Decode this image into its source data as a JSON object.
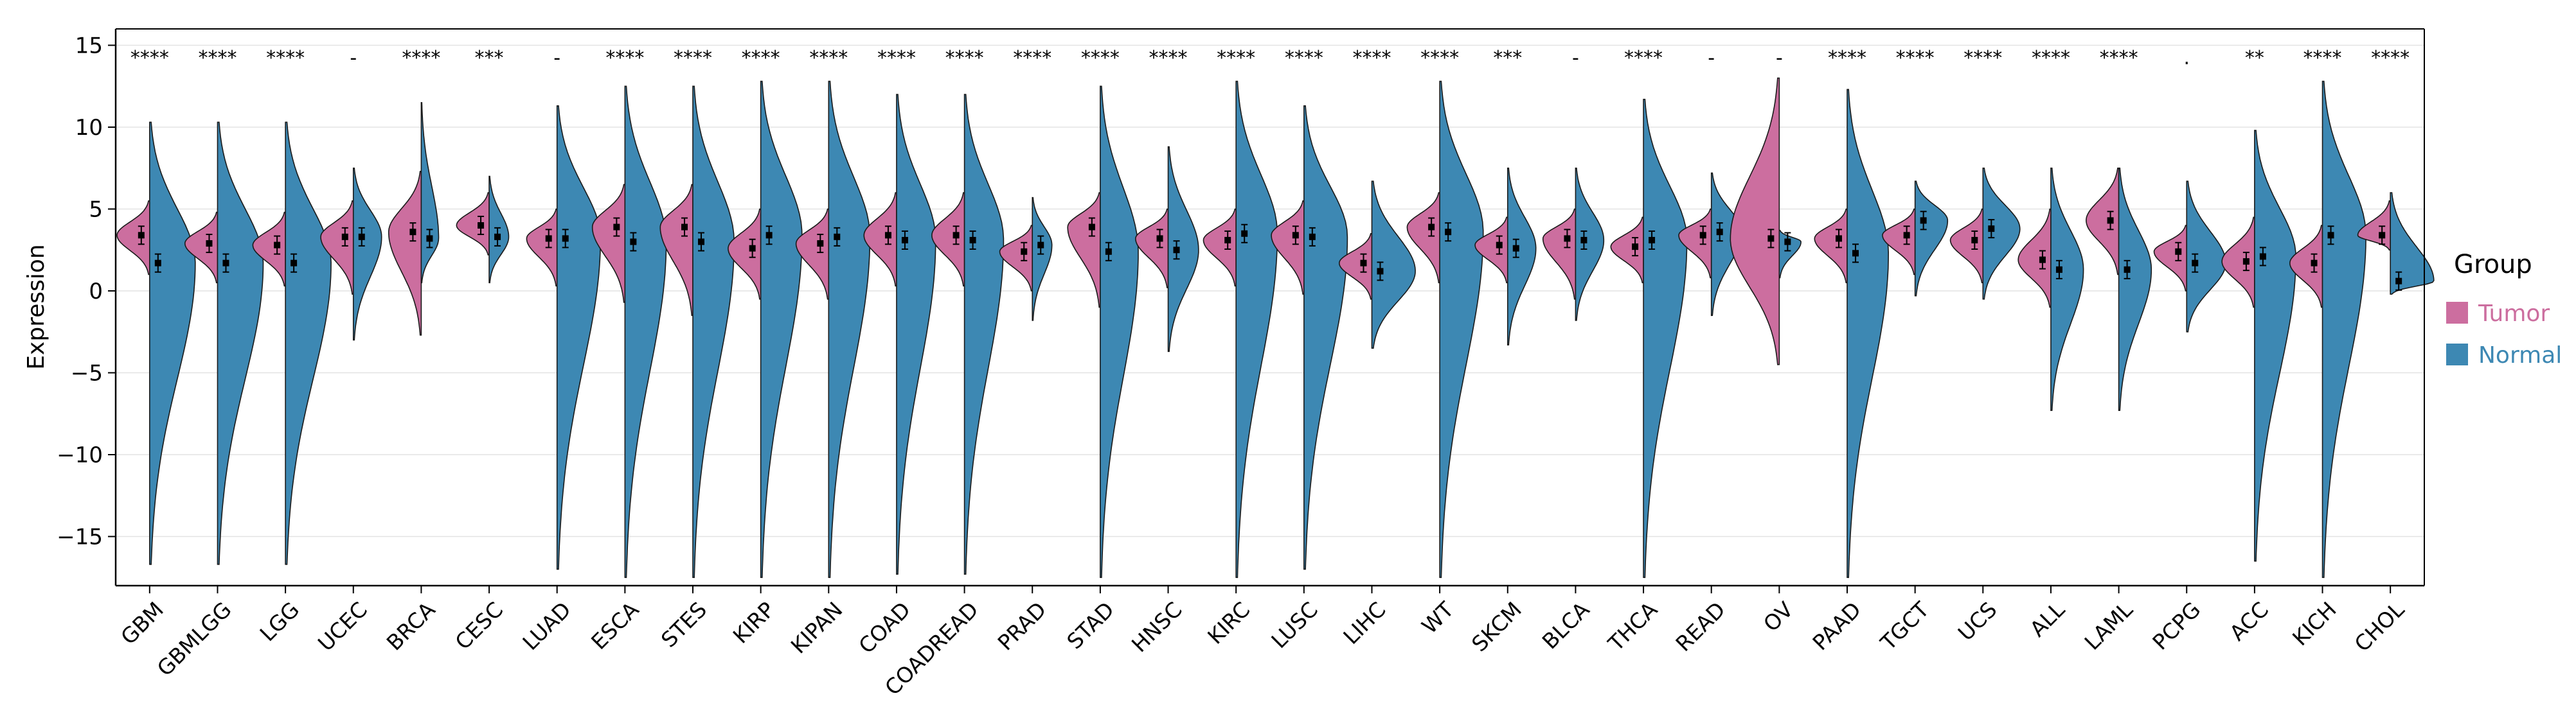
{
  "chart_data": {
    "type": "split-violin",
    "ylabel": "Expression",
    "xlabel": "",
    "ylim": [
      -18,
      16
    ],
    "yticks": [
      -15,
      -10,
      -5,
      0,
      5,
      10,
      15
    ],
    "ytick_labels": [
      "−15",
      "−10",
      "−5",
      "0",
      "5",
      "10",
      "15"
    ],
    "grid": true,
    "legend": {
      "title": "Group",
      "position": "right",
      "entries": [
        {
          "label": "Tumor",
          "color": "#cc6e9f"
        },
        {
          "label": "Normal",
          "color": "#3d88b3"
        }
      ]
    },
    "categories": [
      "GBM",
      "GBMLGG",
      "LGG",
      "UCEC",
      "BRCA",
      "CESC",
      "LUAD",
      "ESCA",
      "STES",
      "KIRP",
      "KIPAN",
      "COAD",
      "COADREAD",
      "PRAD",
      "STAD",
      "HNSC",
      "KIRC",
      "LUSC",
      "LIHC",
      "WT",
      "SKCM",
      "BLCA",
      "THCA",
      "READ",
      "OV",
      "PAAD",
      "TGCT",
      "UCS",
      "ALL",
      "LAML",
      "PCPG",
      "ACC",
      "KICH",
      "CHOL"
    ],
    "significance": [
      "****",
      "****",
      "****",
      "-",
      "****",
      "***",
      "-",
      "****",
      "****",
      "****",
      "****",
      "****",
      "****",
      "****",
      "****",
      "****",
      "****",
      "****",
      "****",
      "****",
      "***",
      "-",
      "****",
      "-",
      "-",
      "****",
      "****",
      "****",
      "****",
      "****",
      ".",
      "**",
      "****",
      "****"
    ],
    "series": [
      {
        "name": "Tumor",
        "color": "#cc6e9f",
        "side": "left",
        "mean": [
          3.4,
          2.9,
          2.8,
          3.3,
          3.6,
          4.0,
          3.2,
          3.9,
          3.9,
          2.6,
          2.9,
          3.4,
          3.4,
          2.4,
          3.9,
          3.2,
          3.1,
          3.4,
          1.7,
          3.9,
          2.8,
          3.2,
          2.7,
          3.4,
          3.2,
          3.2,
          3.4,
          3.1,
          1.9,
          4.3,
          2.4,
          1.8,
          1.7,
          3.4
        ],
        "min": [
          1.0,
          0.5,
          0.3,
          -0.2,
          -2.7,
          2.2,
          0.3,
          -0.7,
          -1.5,
          -0.5,
          -0.5,
          0.3,
          0.3,
          0.0,
          -1.0,
          0.2,
          0.3,
          -0.2,
          -0.5,
          0.5,
          0.5,
          -0.5,
          0.5,
          0.8,
          -4.5,
          0.5,
          1.0,
          0.5,
          -1.0,
          1.0,
          0.0,
          -1.0,
          -1.0,
          2.5
        ],
        "max": [
          5.5,
          4.8,
          4.8,
          5.5,
          7.3,
          6.0,
          5.0,
          6.5,
          6.5,
          5.0,
          5.0,
          6.0,
          6.0,
          4.0,
          6.0,
          5.0,
          5.0,
          5.5,
          3.5,
          6.0,
          4.5,
          5.0,
          4.5,
          5.0,
          13.0,
          5.0,
          5.0,
          5.0,
          5.0,
          7.5,
          4.0,
          4.5,
          4.0,
          5.5
        ],
        "peak_width": [
          0.3,
          0.3,
          0.3,
          0.3,
          0.3,
          0.3,
          0.28,
          0.3,
          0.3,
          0.3,
          0.3,
          0.3,
          0.3,
          0.3,
          0.3,
          0.3,
          0.3,
          0.3,
          0.3,
          0.3,
          0.3,
          0.3,
          0.3,
          0.3,
          0.45,
          0.3,
          0.3,
          0.3,
          0.3,
          0.3,
          0.3,
          0.3,
          0.3,
          0.3
        ]
      },
      {
        "name": "Normal",
        "color": "#3d88b3",
        "side": "right",
        "mean": [
          1.7,
          1.7,
          1.7,
          3.3,
          3.2,
          3.3,
          3.2,
          3.0,
          3.0,
          3.4,
          3.3,
          3.1,
          3.1,
          2.8,
          2.4,
          2.5,
          3.5,
          3.3,
          1.2,
          3.6,
          2.6,
          3.1,
          3.1,
          3.6,
          3.0,
          2.3,
          4.3,
          3.8,
          1.3,
          1.3,
          1.7,
          2.1,
          3.4,
          0.6
        ],
        "min": [
          -16.7,
          -16.7,
          -16.7,
          -3.0,
          0.5,
          0.5,
          -17.0,
          -17.5,
          -17.5,
          -17.5,
          -17.5,
          -17.3,
          -17.3,
          -1.8,
          -17.5,
          -3.7,
          -17.5,
          -17.0,
          -3.5,
          -17.5,
          -3.3,
          -1.8,
          -17.5,
          -1.5,
          0.8,
          -17.5,
          -0.3,
          -0.5,
          -7.3,
          -7.3,
          -2.5,
          -16.5,
          -17.5,
          -0.2
        ],
        "max": [
          10.3,
          10.3,
          10.3,
          7.5,
          11.5,
          7.0,
          11.3,
          12.5,
          12.5,
          12.8,
          12.8,
          12.0,
          12.0,
          5.7,
          12.5,
          8.8,
          12.8,
          11.3,
          6.7,
          12.8,
          7.5,
          7.5,
          11.7,
          7.2,
          3.7,
          12.3,
          6.7,
          7.5,
          7.5,
          7.5,
          6.7,
          9.8,
          12.8,
          6.0
        ],
        "peak_width": [
          0.42,
          0.42,
          0.42,
          0.26,
          0.16,
          0.18,
          0.4,
          0.38,
          0.38,
          0.38,
          0.38,
          0.36,
          0.36,
          0.18,
          0.35,
          0.28,
          0.38,
          0.4,
          0.4,
          0.4,
          0.26,
          0.26,
          0.4,
          0.28,
          0.2,
          0.38,
          0.3,
          0.34,
          0.3,
          0.3,
          0.36,
          0.38,
          0.4,
          0.4
        ]
      }
    ]
  }
}
